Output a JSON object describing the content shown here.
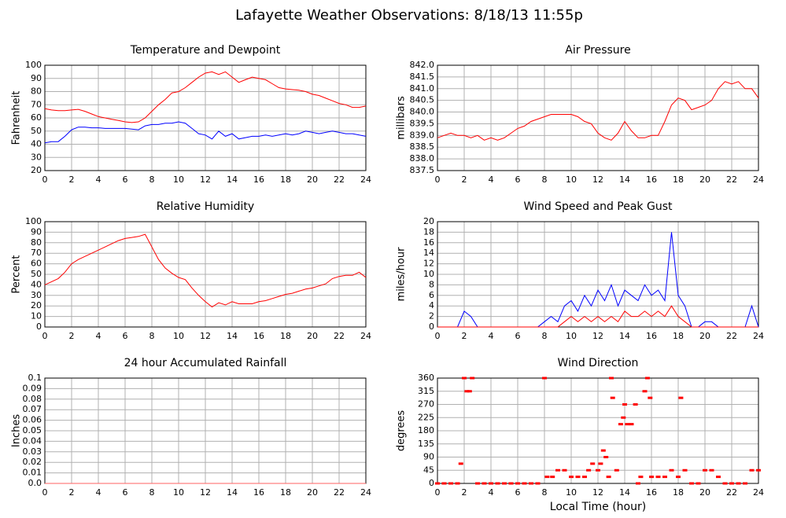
{
  "title": "Lafayette Weather Observations: 8/18/13 11:55p",
  "chart_data": [
    {
      "type": "line",
      "title": "Temperature and Dewpoint",
      "ylabel": "Fahrenheit",
      "x": [
        0,
        0.5,
        1,
        1.5,
        2,
        2.5,
        3,
        3.5,
        4,
        4.5,
        5,
        5.5,
        6,
        6.5,
        7,
        7.5,
        8,
        8.5,
        9,
        9.5,
        10,
        10.5,
        11,
        11.5,
        12,
        12.5,
        13,
        13.5,
        14,
        14.5,
        15,
        15.5,
        16,
        16.5,
        17,
        17.5,
        18,
        18.5,
        19,
        19.5,
        20,
        20.5,
        21,
        21.5,
        22,
        22.5,
        23,
        23.5,
        24
      ],
      "series": [
        {
          "name": "Temperature",
          "color": "#ff0000",
          "values": [
            67,
            66,
            65.5,
            65.5,
            66,
            66.5,
            65,
            63,
            61,
            60,
            59,
            58,
            57,
            56.5,
            57,
            60,
            65,
            70,
            74,
            79,
            80,
            83,
            87,
            91,
            94,
            95,
            93,
            95,
            91,
            87,
            89,
            91,
            90,
            89,
            86,
            83,
            82,
            81.5,
            81,
            80,
            78,
            77,
            75,
            73,
            71,
            70,
            68,
            68,
            69
          ]
        },
        {
          "name": "Dewpoint",
          "color": "#0000ff",
          "values": [
            41,
            42,
            42,
            46,
            51,
            53,
            53,
            52.5,
            52.5,
            52,
            52,
            52,
            52,
            51.5,
            51,
            54,
            55,
            55,
            56,
            56,
            57,
            56,
            52,
            48,
            47,
            44,
            50,
            46,
            48,
            44,
            45,
            46,
            46,
            47,
            46,
            47,
            48,
            47,
            48,
            50,
            49,
            48,
            49,
            50,
            49,
            48,
            48,
            47,
            46
          ]
        }
      ],
      "xlim": [
        0,
        24
      ],
      "xticks": [
        0,
        2,
        4,
        6,
        8,
        10,
        12,
        14,
        16,
        18,
        20,
        22,
        24
      ],
      "ylim": [
        20,
        100
      ],
      "yticks": [
        20,
        30,
        40,
        50,
        60,
        70,
        80,
        90,
        100
      ],
      "grid": true
    },
    {
      "type": "line",
      "title": "Air Pressure",
      "ylabel": "millibars",
      "x": [
        0,
        0.5,
        1,
        1.5,
        2,
        2.5,
        3,
        3.5,
        4,
        4.5,
        5,
        5.5,
        6,
        6.5,
        7,
        7.5,
        8,
        8.5,
        9,
        9.5,
        10,
        10.5,
        11,
        11.5,
        12,
        12.5,
        13,
        13.5,
        14,
        14.5,
        15,
        15.5,
        16,
        16.5,
        17,
        17.5,
        18,
        18.5,
        19,
        19.5,
        20,
        20.5,
        21,
        21.5,
        22,
        22.5,
        23,
        23.5,
        24
      ],
      "series": [
        {
          "name": "Pressure",
          "color": "#ff0000",
          "values": [
            838.9,
            839.0,
            839.1,
            839.0,
            839.0,
            838.9,
            839.0,
            838.8,
            838.9,
            838.8,
            838.9,
            839.1,
            839.3,
            839.4,
            839.6,
            839.7,
            839.8,
            839.9,
            839.9,
            839.9,
            839.9,
            839.8,
            839.6,
            839.5,
            839.1,
            838.9,
            838.8,
            839.1,
            839.6,
            839.2,
            838.9,
            838.9,
            839.0,
            839.0,
            839.6,
            840.3,
            840.6,
            840.5,
            840.1,
            840.2,
            840.3,
            840.5,
            841.0,
            841.3,
            841.2,
            841.3,
            841.0,
            841.0,
            840.6
          ]
        }
      ],
      "xlim": [
        0,
        24
      ],
      "xticks": [
        0,
        2,
        4,
        6,
        8,
        10,
        12,
        14,
        16,
        18,
        20,
        22,
        24
      ],
      "ylim": [
        837.5,
        842.0
      ],
      "yticks": [
        837.5,
        {
          "value": 838,
          "label": "838.0"
        },
        838.5,
        {
          "value": 839,
          "label": "839.0"
        },
        839.5,
        {
          "value": 840,
          "label": "840.0"
        },
        840.5,
        {
          "value": 841,
          "label": "841.0"
        },
        841.5,
        {
          "value": 842,
          "label": "842.0"
        }
      ],
      "grid": true
    },
    {
      "type": "line",
      "title": "Relative Humidity",
      "ylabel": "Percent",
      "x": [
        0,
        0.5,
        1,
        1.5,
        2,
        2.5,
        3,
        3.5,
        4,
        4.5,
        5,
        5.5,
        6,
        6.5,
        7,
        7.5,
        8,
        8.5,
        9,
        9.5,
        10,
        10.5,
        11,
        11.5,
        12,
        12.5,
        13,
        13.5,
        14,
        14.5,
        15,
        15.5,
        16,
        16.5,
        17,
        17.5,
        18,
        18.5,
        19,
        19.5,
        20,
        20.5,
        21,
        21.5,
        22,
        22.5,
        23,
        23.5,
        24
      ],
      "series": [
        {
          "name": "Humidity",
          "color": "#ff0000",
          "values": [
            40,
            43,
            46,
            52,
            60,
            64,
            67,
            70,
            73,
            76,
            79,
            82,
            84,
            85,
            86,
            88,
            76,
            64,
            56,
            51,
            47,
            45,
            37,
            30,
            24,
            19,
            23,
            21,
            24,
            22,
            22,
            22,
            24,
            25,
            27,
            29,
            31,
            32,
            34,
            36,
            37,
            39,
            41,
            46,
            48,
            49,
            49,
            52,
            47
          ]
        }
      ],
      "xlim": [
        0,
        24
      ],
      "xticks": [
        0,
        2,
        4,
        6,
        8,
        10,
        12,
        14,
        16,
        18,
        20,
        22,
        24
      ],
      "ylim": [
        0,
        100
      ],
      "yticks": [
        0,
        10,
        20,
        30,
        40,
        50,
        60,
        70,
        80,
        90,
        100
      ],
      "grid": true
    },
    {
      "type": "line",
      "title": "Wind Speed and Peak Gust",
      "ylabel": "miles/hour",
      "x": [
        0,
        0.5,
        1,
        1.5,
        2,
        2.5,
        3,
        3.5,
        4,
        4.5,
        5,
        5.5,
        6,
        6.5,
        7,
        7.5,
        8,
        8.5,
        9,
        9.5,
        10,
        10.5,
        11,
        11.5,
        12,
        12.5,
        13,
        13.5,
        14,
        14.5,
        15,
        15.5,
        16,
        16.5,
        17,
        17.5,
        18,
        18.5,
        19,
        19.5,
        20,
        20.5,
        21,
        21.5,
        22,
        22.5,
        23,
        23.5,
        24
      ],
      "series": [
        {
          "name": "Peak Gust",
          "color": "#0000ff",
          "values": [
            0,
            0,
            0,
            0,
            3,
            2,
            0,
            0,
            0,
            0,
            0,
            0,
            0,
            0,
            0,
            0,
            1,
            2,
            1,
            4,
            5,
            3,
            6,
            4,
            7,
            5,
            8,
            4,
            7,
            6,
            5,
            8,
            6,
            7,
            5,
            18,
            6,
            4,
            0,
            0,
            1,
            1,
            0,
            0,
            0,
            0,
            0,
            4,
            0
          ]
        },
        {
          "name": "Wind Speed",
          "color": "#ff0000",
          "values": [
            0,
            0,
            0,
            0,
            0,
            0,
            0,
            0,
            0,
            0,
            0,
            0,
            0,
            0,
            0,
            0,
            0,
            0,
            0,
            1,
            2,
            1,
            2,
            1,
            2,
            1,
            2,
            1,
            3,
            2,
            2,
            3,
            2,
            3,
            2,
            4,
            2,
            1,
            0,
            0,
            0,
            0,
            0,
            0,
            0,
            0,
            0,
            0,
            0
          ]
        }
      ],
      "xlim": [
        0,
        24
      ],
      "xticks": [
        0,
        2,
        4,
        6,
        8,
        10,
        12,
        14,
        16,
        18,
        20,
        22,
        24
      ],
      "ylim": [
        0,
        20
      ],
      "yticks": [
        0,
        2,
        4,
        6,
        8,
        10,
        12,
        14,
        16,
        18,
        20
      ],
      "grid": true
    },
    {
      "type": "line",
      "title": "24 hour Accumulated Rainfall",
      "ylabel": "Inches",
      "x": [
        0,
        24
      ],
      "series": [
        {
          "name": "Rainfall",
          "color": "#ff6060",
          "values": [
            0,
            0
          ]
        }
      ],
      "xlim": [
        0,
        24
      ],
      "xticks": [
        0,
        2,
        4,
        6,
        8,
        10,
        12,
        14,
        16,
        18,
        20,
        22,
        24
      ],
      "ylim": [
        0,
        0.1
      ],
      "yticks": [
        {
          "value": 0,
          "label": "0.0"
        },
        0.01,
        0.02,
        0.03,
        0.04,
        0.05,
        0.06,
        0.07,
        0.08,
        0.09,
        {
          "value": 0.1,
          "label": "0.1"
        }
      ],
      "grid": true
    },
    {
      "type": "scatter",
      "title": "Wind Direction",
      "ylabel": "degrees",
      "xlabel": "Local Time (hour)",
      "x": [
        0,
        0.5,
        1,
        1.5,
        1.75,
        2,
        2.2,
        2.4,
        2.6,
        3,
        3.5,
        4,
        4.5,
        5,
        5.5,
        6,
        6.5,
        7,
        7.5,
        8,
        8.2,
        8.6,
        9,
        9.5,
        10,
        10.5,
        11,
        11.3,
        11.6,
        12,
        12.2,
        12.4,
        12.6,
        12.8,
        13,
        13.1,
        13.4,
        13.7,
        13.9,
        14,
        14.2,
        14.5,
        14.8,
        15,
        15.2,
        15.5,
        15.7,
        15.9,
        16,
        16.5,
        17,
        17.5,
        18,
        18.2,
        18.5,
        19,
        19.5,
        20,
        20.5,
        21,
        21.5,
        22,
        22.5,
        23,
        23.5,
        24
      ],
      "series": [
        {
          "name": "Direction",
          "color": "#ff0000",
          "values": [
            0,
            0,
            0,
            0,
            67.5,
            360,
            315,
            315,
            360,
            0,
            0,
            0,
            0,
            0,
            0,
            0,
            0,
            0,
            0,
            360,
            22.5,
            22.5,
            45,
            45,
            22.5,
            22.5,
            22.5,
            45,
            67.5,
            45,
            67.5,
            112.5,
            90,
            22.5,
            360,
            292.5,
            45,
            202.5,
            225,
            270,
            202.5,
            202.5,
            270,
            0,
            22.5,
            315,
            360,
            292.5,
            22.5,
            22.5,
            22.5,
            45,
            22.5,
            292.5,
            45,
            0,
            0,
            45,
            45,
            22.5,
            0,
            0,
            0,
            0,
            45,
            45
          ]
        }
      ],
      "xlim": [
        0,
        24
      ],
      "xticks": [
        0,
        2,
        4,
        6,
        8,
        10,
        12,
        14,
        16,
        18,
        20,
        22,
        24
      ],
      "ylim": [
        0,
        360
      ],
      "yticks": [
        0,
        45,
        90,
        135,
        180,
        225,
        270,
        315,
        360
      ],
      "grid": true
    }
  ]
}
